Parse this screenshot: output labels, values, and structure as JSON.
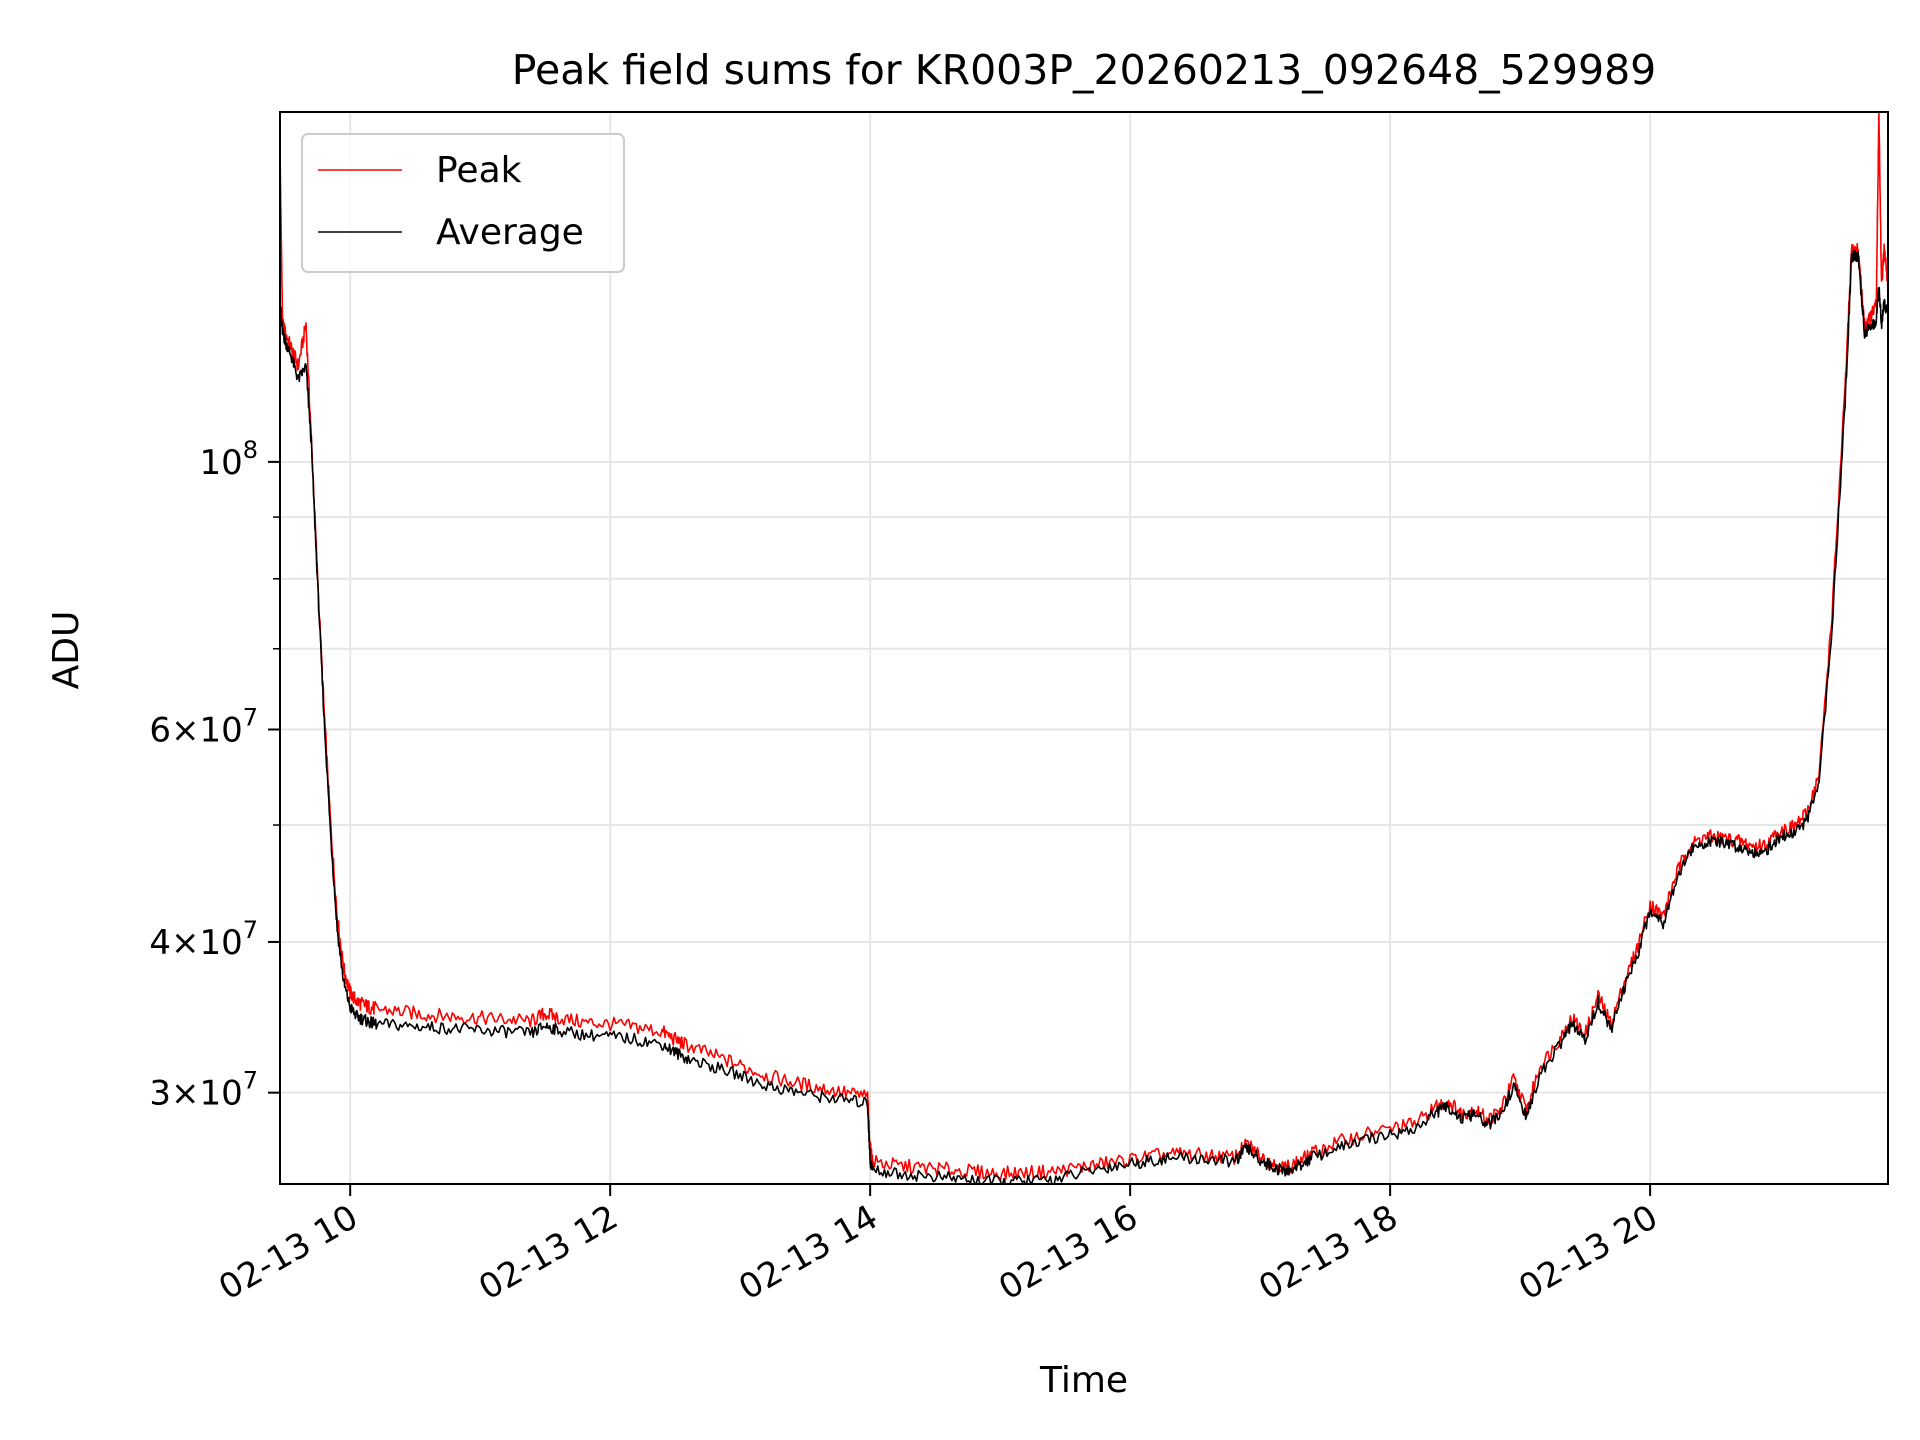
{
  "chart_data": {
    "type": "line",
    "title": "Peak field sums for KR003P_20260213_092648_529989",
    "xlabel": "Time",
    "ylabel": "ADU",
    "yscale": "log",
    "x_unit": "hours",
    "xlim": [
      9.46,
      21.83
    ],
    "ylim": [
      25200000,
      195000000
    ],
    "grid": true,
    "legend_position": "top-left",
    "x_ticks": [
      {
        "value": 10,
        "label": "02-13 10"
      },
      {
        "value": 12,
        "label": "02-13 12"
      },
      {
        "value": 14,
        "label": "02-13 14"
      },
      {
        "value": 16,
        "label": "02-13 16"
      },
      {
        "value": 18,
        "label": "02-13 18"
      },
      {
        "value": 20,
        "label": "02-13 20"
      }
    ],
    "y_ticks": [
      {
        "value": 30000000,
        "mantissa": "3",
        "base": "10",
        "exp": "7"
      },
      {
        "value": 40000000,
        "mantissa": "4",
        "base": "10",
        "exp": "7"
      },
      {
        "value": 60000000,
        "mantissa": "6",
        "base": "10",
        "exp": "7"
      },
      {
        "value": 100000000,
        "mantissa": "",
        "base": "10",
        "exp": "8"
      }
    ],
    "y_minor_ticks": [
      50000000,
      70000000,
      80000000,
      90000000
    ],
    "series": [
      {
        "name": "Peak",
        "color": "#ff0000",
        "x": [
          9.46,
          9.48,
          9.5,
          9.55,
          9.6,
          9.66,
          9.7,
          9.75,
          9.8,
          9.85,
          9.9,
          9.95,
          10.0,
          10.05,
          10.1,
          10.15,
          10.2,
          10.4,
          10.6,
          10.8,
          11.0,
          11.2,
          11.4,
          11.5,
          11.6,
          11.8,
          12.0,
          12.2,
          12.4,
          12.5,
          12.6,
          12.8,
          13.0,
          13.2,
          13.4,
          13.6,
          13.8,
          13.98,
          14.0,
          14.02,
          14.2,
          14.4,
          14.6,
          14.8,
          15.0,
          15.2,
          15.4,
          15.6,
          15.8,
          16.0,
          16.2,
          16.4,
          16.6,
          16.8,
          16.9,
          17.0,
          17.1,
          17.2,
          17.3,
          17.4,
          17.6,
          17.8,
          18.0,
          18.2,
          18.35,
          18.45,
          18.55,
          18.65,
          18.75,
          18.85,
          18.95,
          19.05,
          19.15,
          19.3,
          19.4,
          19.5,
          19.6,
          19.7,
          19.8,
          19.9,
          20.0,
          20.1,
          20.2,
          20.3,
          20.4,
          20.5,
          20.6,
          20.7,
          20.8,
          20.9,
          21.0,
          21.1,
          21.2,
          21.3,
          21.4,
          21.5,
          21.55,
          21.6,
          21.65,
          21.7,
          21.74,
          21.76,
          21.78,
          21.8,
          21.83
        ],
        "y": [
          180000000,
          130000000,
          128000000,
          124000000,
          120000000,
          130000000,
          105000000,
          80000000,
          62000000,
          50000000,
          42000000,
          38000000,
          36300000,
          35700000,
          35500000,
          35300000,
          35200000,
          35000000,
          34800000,
          34700000,
          34600000,
          34500000,
          34400000,
          34900000,
          34600000,
          34300000,
          34200000,
          34000000,
          33700000,
          33200000,
          32800000,
          32200000,
          31600000,
          31000000,
          30600000,
          30300000,
          30000000,
          29800000,
          27000000,
          26300000,
          26100000,
          26000000,
          25900000,
          25800000,
          25700000,
          25750000,
          25800000,
          26000000,
          26200000,
          26400000,
          26600000,
          26700000,
          26600000,
          26500000,
          27200000,
          26600000,
          26200000,
          26000000,
          26300000,
          26700000,
          27300000,
          27700000,
          28000000,
          28300000,
          29200000,
          29500000,
          28800000,
          29100000,
          28500000,
          29000000,
          30800000,
          29000000,
          31500000,
          33200000,
          34600000,
          33500000,
          36100000,
          34200000,
          37000000,
          39500000,
          43000000,
          42000000,
          45500000,
          48000000,
          48800000,
          48900000,
          48700000,
          48400000,
          48000000,
          48200000,
          49500000,
          49800000,
          51000000,
          55000000,
          75000000,
          115000000,
          150000000,
          150000000,
          130000000,
          132000000,
          135000000,
          195000000,
          140000000,
          150000000,
          140000000
        ]
      },
      {
        "name": "Average",
        "color": "#000000",
        "x": [
          9.46,
          9.48,
          9.5,
          9.55,
          9.6,
          9.66,
          9.7,
          9.75,
          9.8,
          9.85,
          9.9,
          9.95,
          10.0,
          10.05,
          10.1,
          10.15,
          10.2,
          10.4,
          10.6,
          10.8,
          11.0,
          11.2,
          11.4,
          11.5,
          11.6,
          11.8,
          12.0,
          12.2,
          12.4,
          12.5,
          12.6,
          12.8,
          13.0,
          13.2,
          13.4,
          13.6,
          13.8,
          13.98,
          14.0,
          14.02,
          14.2,
          14.4,
          14.6,
          14.8,
          15.0,
          15.2,
          15.4,
          15.6,
          15.8,
          16.0,
          16.2,
          16.4,
          16.6,
          16.8,
          16.9,
          17.0,
          17.1,
          17.2,
          17.3,
          17.4,
          17.6,
          17.8,
          18.0,
          18.2,
          18.35,
          18.45,
          18.55,
          18.65,
          18.75,
          18.85,
          18.95,
          19.05,
          19.15,
          19.3,
          19.4,
          19.5,
          19.6,
          19.7,
          19.8,
          19.9,
          20.0,
          20.1,
          20.2,
          20.3,
          20.4,
          20.5,
          20.6,
          20.7,
          20.8,
          20.9,
          21.0,
          21.1,
          21.2,
          21.3,
          21.4,
          21.5,
          21.55,
          21.6,
          21.65,
          21.7,
          21.74,
          21.76,
          21.78,
          21.8,
          21.83
        ],
        "y": [
          135000000,
          128000000,
          126000000,
          122000000,
          117000000,
          120000000,
          104000000,
          79000000,
          61000000,
          49000000,
          41000000,
          37000000,
          35300000,
          34700000,
          34500000,
          34300000,
          34200000,
          34100000,
          34000000,
          33900000,
          33800000,
          33700000,
          33600000,
          34100000,
          33800000,
          33500000,
          33400000,
          33200000,
          32900000,
          32400000,
          32000000,
          31500000,
          31000000,
          30400000,
          30100000,
          29800000,
          29600000,
          29400000,
          26300000,
          25900000,
          25700000,
          25600000,
          25500000,
          25400000,
          25300000,
          25350000,
          25400000,
          25700000,
          26000000,
          26200000,
          26400000,
          26500000,
          26400000,
          26300000,
          27000000,
          26400000,
          26000000,
          25800000,
          26100000,
          26500000,
          27000000,
          27400000,
          27700000,
          28000000,
          28900000,
          29200000,
          28500000,
          28800000,
          28200000,
          28700000,
          30400000,
          28600000,
          31000000,
          32800000,
          34200000,
          33100000,
          35700000,
          33800000,
          36600000,
          39000000,
          42500000,
          41500000,
          45000000,
          47500000,
          48300000,
          48400000,
          48200000,
          47900000,
          47500000,
          47700000,
          48900000,
          49200000,
          50300000,
          54000000,
          73000000,
          112000000,
          148000000,
          148000000,
          128000000,
          129000000,
          131000000,
          140000000,
          130000000,
          136000000,
          132000000
        ]
      }
    ]
  }
}
